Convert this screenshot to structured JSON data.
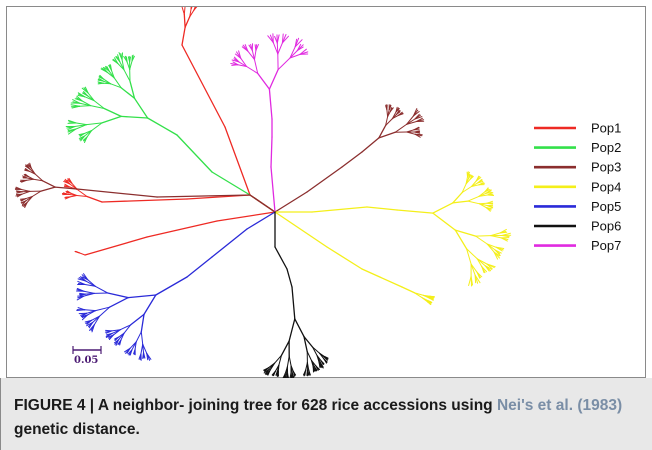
{
  "figure": {
    "caption_label": "FIGURE 4 | ",
    "caption_text": "A neighbor- joining tree for 628 rice accessions using ",
    "caption_citation": "Nei's et al. (1983)",
    "caption_tail": " genetic distance."
  },
  "scale_bar": {
    "label": "0.05"
  },
  "legend": [
    {
      "name": "Pop1",
      "color": "#ee2a24"
    },
    {
      "name": "Pop2",
      "color": "#33e04a"
    },
    {
      "name": "Pop3",
      "color": "#8b2e2e"
    },
    {
      "name": "Pop4",
      "color": "#f4ef1a"
    },
    {
      "name": "Pop5",
      "color": "#2a2ad8"
    },
    {
      "name": "Pop6",
      "color": "#111111"
    },
    {
      "name": "Pop7",
      "color": "#e02ae0"
    }
  ]
}
